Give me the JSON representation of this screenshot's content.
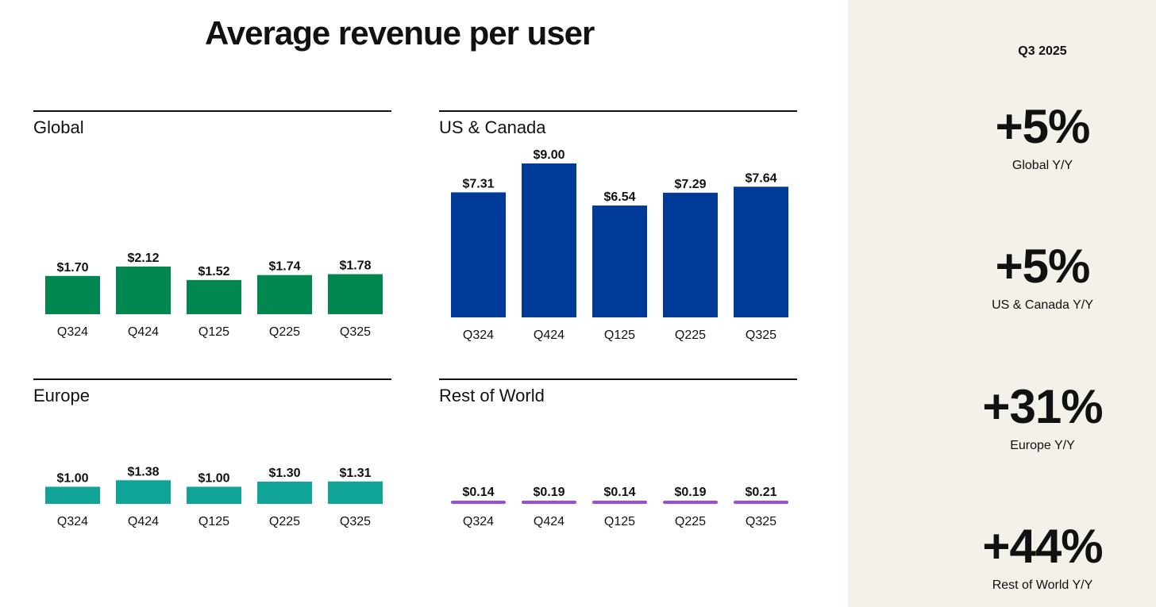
{
  "title": "Average revenue per user",
  "sidebar": {
    "period": "Q3 2025",
    "stats": [
      {
        "value": "+5%",
        "label": "Global Y/Y"
      },
      {
        "value": "+5%",
        "label": "US & Canada Y/Y"
      },
      {
        "value": "+31%",
        "label": "Europe Y/Y"
      },
      {
        "value": "+44%",
        "label": "Rest of World Y/Y"
      }
    ]
  },
  "colors": {
    "global": "#00874f",
    "us_canada": "#003a99",
    "europe": "#10a398",
    "rest_of_world": "#9b4ae0",
    "sidebar_bg": "#f3f1ea"
  },
  "chart_data": [
    {
      "type": "bar",
      "title": "Global",
      "categories": [
        "Q324",
        "Q424",
        "Q125",
        "Q225",
        "Q325"
      ],
      "values": [
        1.7,
        2.12,
        1.52,
        1.74,
        1.78
      ],
      "value_labels": [
        "$1.70",
        "$2.12",
        "$1.52",
        "$1.74",
        "$1.78"
      ],
      "color": "#00874f",
      "ylim": [
        0,
        7.3
      ]
    },
    {
      "type": "bar",
      "title": "US & Canada",
      "categories": [
        "Q324",
        "Q424",
        "Q125",
        "Q225",
        "Q325"
      ],
      "values": [
        7.31,
        9.0,
        6.54,
        7.29,
        7.64
      ],
      "value_labels": [
        "$7.31",
        "$9.00",
        "$6.54",
        "$7.29",
        "$7.64"
      ],
      "color": "#003a99",
      "ylim": [
        0,
        9.0
      ]
    },
    {
      "type": "bar",
      "title": "Europe",
      "categories": [
        "Q324",
        "Q424",
        "Q125",
        "Q225",
        "Q325"
      ],
      "values": [
        1.0,
        1.38,
        1.0,
        1.3,
        1.31
      ],
      "value_labels": [
        "$1.00",
        "$1.38",
        "$1.00",
        "$1.30",
        "$1.31"
      ],
      "color": "#10a398",
      "ylim": [
        0,
        9.0
      ]
    },
    {
      "type": "bar",
      "title": "Rest of World",
      "categories": [
        "Q324",
        "Q424",
        "Q125",
        "Q225",
        "Q325"
      ],
      "values": [
        0.14,
        0.19,
        0.14,
        0.19,
        0.21
      ],
      "value_labels": [
        "$0.14",
        "$0.19",
        "$0.14",
        "$0.19",
        "$0.21"
      ],
      "color": "#9b4ae0",
      "ylim": [
        0,
        9.0
      ]
    }
  ]
}
